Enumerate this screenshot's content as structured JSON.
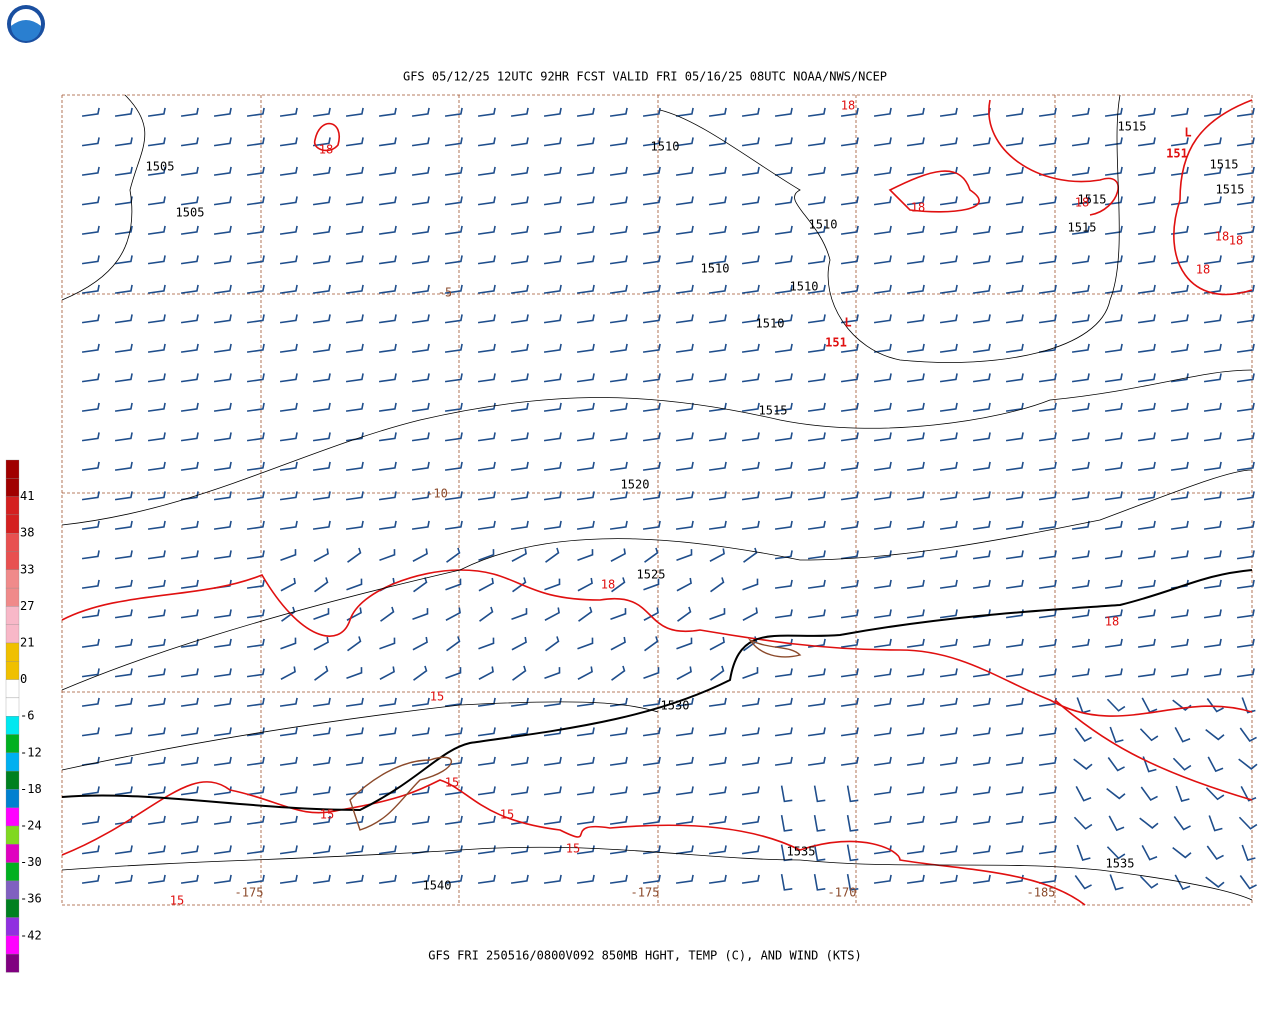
{
  "header": {
    "title": "GFS 05/12/25 12UTC 92HR FCST VALID FRI 05/16/25 08UTC NOAA/NWS/NCEP"
  },
  "footer": {
    "caption": "GFS FRI 250516/0800V092 850MB HGHT, TEMP (C), AND WIND (KTS)"
  },
  "legend": {
    "labels": [
      41,
      38,
      33,
      27,
      21,
      0,
      -6,
      -12,
      -18,
      -24,
      -30,
      -36,
      -42
    ]
  },
  "map": {
    "height_labels": [
      1505,
      1505,
      1510,
      1510,
      1510,
      1510,
      1510,
      1515,
      1515,
      1515,
      1515,
      1515,
      1515,
      1520,
      1525,
      1530,
      1535,
      1535,
      1540
    ],
    "temp_labels": [
      18,
      18,
      18,
      18,
      18,
      18,
      18,
      18,
      18,
      15,
      15,
      15,
      15,
      15,
      15
    ],
    "low_labels": [
      "L",
      "L"
    ],
    "low_values": [
      151,
      151
    ],
    "brown_labels": [
      -5,
      -10,
      -175,
      -175,
      -170,
      -185
    ]
  }
}
